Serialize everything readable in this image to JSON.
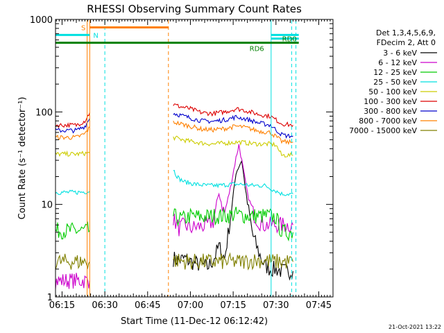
{
  "chart_data": {
    "type": "line",
    "title": "RHESSI Observing Summary Count Rates",
    "xlabel": "Start Time (11-Dec-12 06:12:42)",
    "ylabel": "Count Rate (s⁻¹ detector⁻¹)",
    "y_scale": "log",
    "ylim": [
      1,
      1000
    ],
    "xlim": [
      "06:12:42",
      "07:50:00"
    ],
    "x_unit": "minutes after 06:00 UT",
    "x_ticks": [
      "06:15",
      "06:30",
      "06:45",
      "07:00",
      "07:15",
      "07:30",
      "07:45"
    ],
    "y_ticks": [
      "1",
      "10",
      "100",
      "1000"
    ],
    "grid": false,
    "legend_position": "right",
    "legend_header": [
      "Det 1,3,4,5,6,9,",
      "FDecim 2, Att 0"
    ],
    "series": [
      {
        "name": "3 - 6 keV",
        "color": "#000000",
        "segments": [
          {
            "x": [
              54,
              56,
              58,
              60,
              62,
              64,
              66,
              68,
              70,
              72,
              74,
              76,
              78,
              80,
              82,
              84,
              86,
              88,
              90,
              92,
              94,
              96
            ],
            "y": [
              2.6,
              2.5,
              2.6,
              2.4,
              2.3,
              2.2,
              2.1,
              2.5,
              3.5,
              2.6,
              7,
              22,
              30,
              10,
              4.5,
              3,
              2.2,
              2,
              2,
              1.9,
              1.9,
              1.9
            ]
          }
        ]
      },
      {
        "name": "6 - 12 keV",
        "color": "#cc00cc",
        "segments": [
          {
            "x": [
              12.7,
              16,
              20,
              23,
              24.7
            ],
            "y": [
              1.5,
              1.5,
              1.5,
              1.5,
              1.5
            ]
          },
          {
            "x": [
              54,
              56,
              58,
              60,
              62,
              64,
              66,
              68,
              70,
              72,
              74,
              76,
              77,
              78,
              80,
              82,
              84,
              86,
              88,
              90,
              92,
              94,
              96
            ],
            "y": [
              7,
              5.5,
              6,
              5.5,
              5.7,
              5.8,
              6,
              6.5,
              13,
              8,
              15,
              32,
              44,
              30,
              13,
              8,
              6.5,
              6,
              6,
              6,
              6,
              6,
              6
            ]
          }
        ]
      },
      {
        "name": "12 - 25 keV",
        "color": "#00cc00",
        "segments": [
          {
            "x": [
              12.7,
              16,
              20,
              24.7
            ],
            "y": [
              5.2,
              5.2,
              5.2,
              5.2
            ]
          },
          {
            "x": [
              54,
              56,
              58,
              60,
              64,
              68,
              72,
              76,
              80,
              84,
              88,
              90,
              92,
              94,
              96
            ],
            "y": [
              7.5,
              7,
              7,
              7.5,
              7.3,
              7.5,
              7.5,
              7.8,
              7.5,
              7.5,
              7.5,
              7.2,
              5,
              5,
              5
            ]
          }
        ]
      },
      {
        "name": "25 - 50 keV",
        "color": "#00e0e0",
        "segments": [
          {
            "x": [
              12.7,
              16,
              20,
              24.7
            ],
            "y": [
              13.5,
              13.5,
              13.5,
              13.8
            ]
          },
          {
            "x": [
              54,
              55,
              56,
              58,
              62,
              66,
              70,
              74,
              78,
              82,
              86,
              88,
              90,
              92,
              94,
              96
            ],
            "y": [
              24,
              21,
              19,
              17.5,
              16.5,
              16,
              16,
              16.5,
              16.5,
              16,
              16,
              15,
              14,
              13,
              13,
              13
            ]
          }
        ]
      },
      {
        "name": "50 - 100 keV",
        "color": "#cccc00",
        "segments": [
          {
            "x": [
              12.7,
              16,
              20,
              24.7
            ],
            "y": [
              35,
              35,
              35,
              36
            ]
          },
          {
            "x": [
              54,
              56,
              60,
              64,
              68,
              72,
              76,
              78,
              80,
              84,
              88,
              90,
              92,
              94,
              96
            ],
            "y": [
              53,
              51,
              48,
              46,
              45,
              46,
              47,
              47,
              46,
              45,
              45,
              44,
              34,
              34,
              34
            ]
          }
        ]
      },
      {
        "name": "100 - 300 keV",
        "color": "#dd0000",
        "segments": [
          {
            "x": [
              12.7,
              16,
              20,
              23,
              24.7
            ],
            "y": [
              72,
              72,
              72,
              80,
              98
            ]
          },
          {
            "x": [
              54,
              56,
              60,
              64,
              68,
              72,
              76,
              78,
              80,
              84,
              88,
              90,
              92,
              94,
              96
            ],
            "y": [
              120,
              115,
              108,
              98,
              96,
              100,
              108,
              106,
              102,
              94,
              90,
              82,
              75,
              73,
              72
            ]
          }
        ]
      },
      {
        "name": "300 - 800 keV",
        "color": "#0000cc",
        "segments": [
          {
            "x": [
              12.7,
              16,
              20,
              23,
              24.7
            ],
            "y": [
              63,
              63,
              63,
              70,
              85
            ]
          },
          {
            "x": [
              54,
              56,
              60,
              64,
              68,
              72,
              76,
              78,
              80,
              84,
              88,
              90,
              92,
              94,
              96
            ],
            "y": [
              97,
              93,
              86,
              80,
              79,
              82,
              88,
              86,
              83,
              76,
              72,
              64,
              57,
              55,
              55
            ]
          }
        ]
      },
      {
        "name": "800 - 7000 keV",
        "color": "#ff8000",
        "segments": [
          {
            "x": [
              12.7,
              16,
              20,
              23,
              24.7
            ],
            "y": [
              53,
              53,
              53,
              58,
              68
            ]
          },
          {
            "x": [
              54,
              56,
              60,
              64,
              68,
              72,
              76,
              78,
              80,
              84,
              88,
              90,
              92,
              94,
              96
            ],
            "y": [
              78,
              75,
              70,
              65,
              64,
              66,
              70,
              69,
              67,
              62,
              60,
              54,
              48,
              47,
              47
            ]
          }
        ]
      },
      {
        "name": "7000 - 15000 keV",
        "color": "#808000",
        "segments": [
          {
            "x": [
              12.7,
              16,
              20,
              24.7
            ],
            "y": [
              2.4,
              2.4,
              2.4,
              2.4
            ]
          },
          {
            "x": [
              54,
              60,
              66,
              72,
              78,
              84,
              90,
              92,
              94,
              96
            ],
            "y": [
              2.5,
              2.4,
              2.4,
              2.4,
              2.4,
              2.5,
              2.4,
              2.4,
              2.4,
              2.4
            ]
          }
        ]
      }
    ],
    "flag_bars": [
      {
        "label": "S",
        "color": "#ff8000",
        "x_start": 24.7,
        "x_end": 52.3,
        "y": 820
      },
      {
        "label": "N",
        "color": "#00e0e0",
        "x_start": 12.7,
        "x_end": 24.7,
        "y": 680
      },
      {
        "label": "",
        "color": "#00e0e0",
        "x_start": 88.3,
        "x_end": 98,
        "y": 680
      },
      {
        "label": "RD0",
        "color": "#00e0e0",
        "x_start": 88.3,
        "x_end": 98,
        "y": 620
      },
      {
        "label": "RD6",
        "color": "#008000",
        "x_start": 12.7,
        "x_end": 98,
        "y": 560
      }
    ],
    "vertical_markers": [
      {
        "x": 12.7,
        "color": "#00e0e0",
        "style": "solid"
      },
      {
        "x": 24.7,
        "color": "#ff8000",
        "style": "solid"
      },
      {
        "x": 23.8,
        "color": "#ff8000",
        "style": "solid"
      },
      {
        "x": 30,
        "color": "#00e0e0",
        "style": "dashed"
      },
      {
        "x": 52.3,
        "color": "#ff8000",
        "style": "dashed"
      },
      {
        "x": 88.3,
        "color": "#00e0e0",
        "style": "solid"
      },
      {
        "x": 95.5,
        "color": "#00e0e0",
        "style": "dashed"
      },
      {
        "x": 97,
        "color": "#00e0e0",
        "style": "dashed"
      }
    ],
    "footer_date": "21-Oct-2021 13:22"
  }
}
